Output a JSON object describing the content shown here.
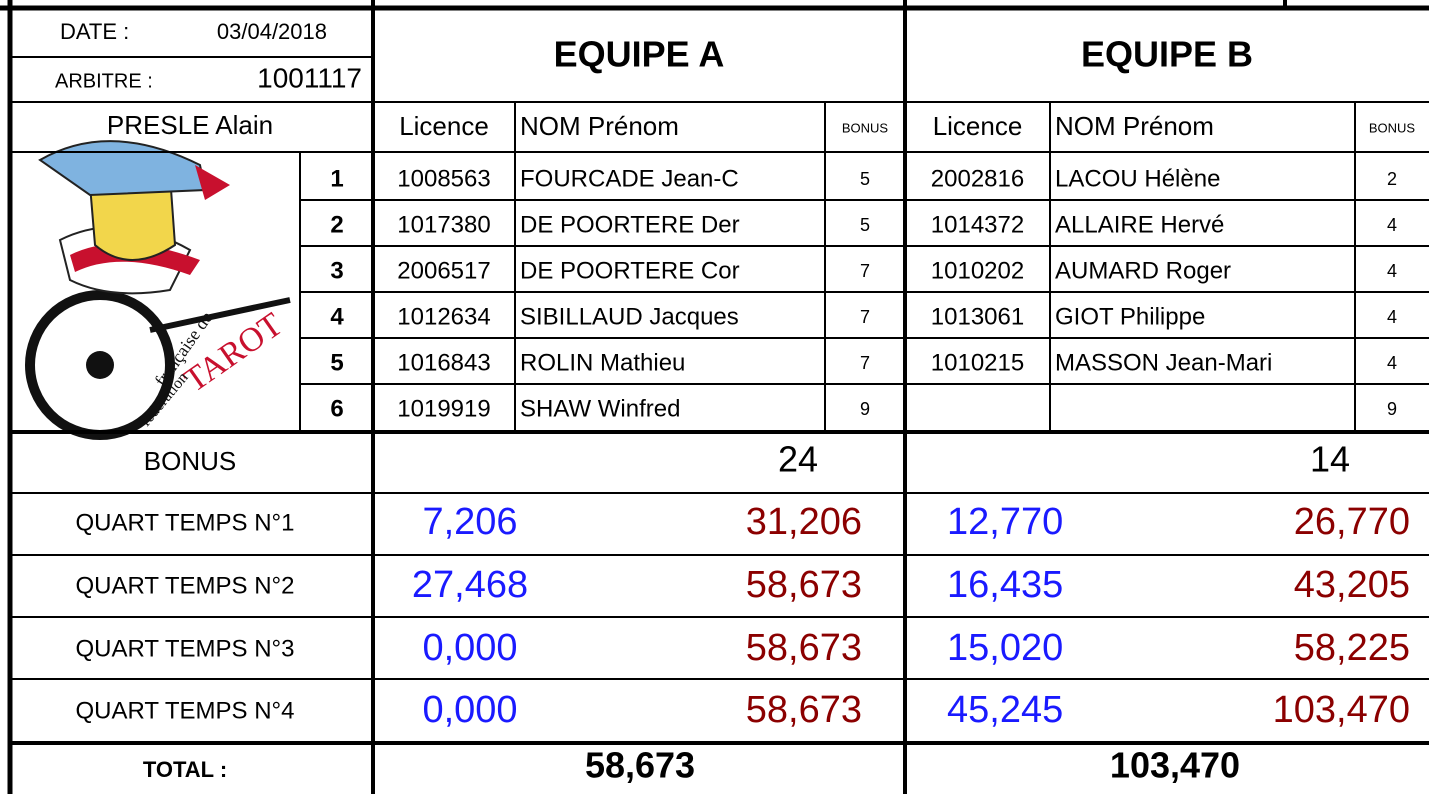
{
  "header": {
    "date_label": "DATE :",
    "date": "03/04/2018",
    "referee_label": "ARBITRE :",
    "referee_id": "1001117",
    "referee_name": "PRESLE Alain"
  },
  "logo": {
    "lines": [
      "française de",
      "TAROT",
      "fédération"
    ]
  },
  "player_numbers": [
    "1",
    "2",
    "3",
    "4",
    "5",
    "6"
  ],
  "bonus_label": "BONUS",
  "quarter_labels": [
    "QUART TEMPS N°1",
    "QUART TEMPS N°2",
    "QUART TEMPS N°3",
    "QUART TEMPS N°4"
  ],
  "total_label": "TOTAL :",
  "teams": [
    {
      "name": "EQUIPE A",
      "columns": [
        "Licence",
        "NOM Prénom",
        "BONUS"
      ],
      "players": [
        [
          "1008563",
          "FOURCADE Jean-C",
          "5"
        ],
        [
          "1017380",
          "DE POORTERE Der",
          "5"
        ],
        [
          "2006517",
          "DE POORTERE Cor",
          "7"
        ],
        [
          "1012634",
          "SIBILLAUD Jacques",
          "7"
        ],
        [
          "1016843",
          "ROLIN Mathieu",
          "7"
        ],
        [
          "1019919",
          "SHAW Winfred",
          "9"
        ]
      ],
      "bonus": "24",
      "quarters": [
        [
          "7,206",
          "31,206"
        ],
        [
          "27,468",
          "58,673"
        ],
        [
          "0,000",
          "58,673"
        ],
        [
          "0,000",
          "58,673"
        ]
      ],
      "total": "58,673"
    },
    {
      "name": "EQUIPE B",
      "columns": [
        "Licence",
        "NOM Prénom",
        "BONUS"
      ],
      "players": [
        [
          "2002816",
          "LACOU Hélène",
          "2"
        ],
        [
          "1014372",
          "ALLAIRE Hervé",
          "4"
        ],
        [
          "1010202",
          "AUMARD Roger",
          "4"
        ],
        [
          "1013061",
          "GIOT Philippe",
          "4"
        ],
        [
          "1010215",
          "MASSON Jean-Mari",
          "4"
        ],
        [
          null,
          null,
          "9"
        ]
      ],
      "bonus": "14",
      "quarters": [
        [
          "12,770",
          "26,770"
        ],
        [
          "16,435",
          "43,205"
        ],
        [
          "15,020",
          "58,225"
        ],
        [
          "45,245",
          "103,470"
        ]
      ],
      "total": "103,470"
    }
  ]
}
